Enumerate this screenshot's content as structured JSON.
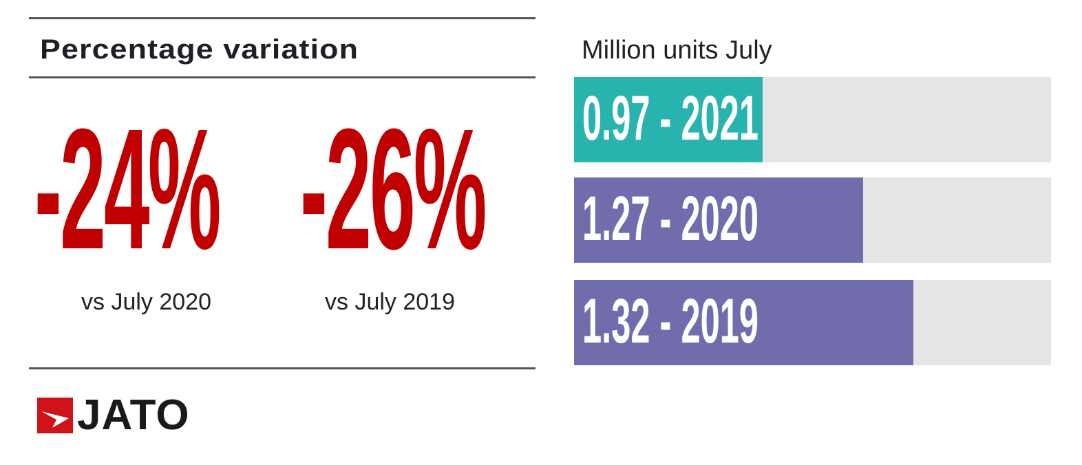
{
  "left": {
    "title": "Percentage variation",
    "stats": [
      {
        "value": "-24%",
        "caption": "vs July 2020"
      },
      {
        "value": "-26%",
        "caption": "vs July 2019"
      }
    ],
    "logo_text": "JATO"
  },
  "colors": {
    "red": "#c00000",
    "teal": "#29b3ae",
    "purple": "#716dad",
    "track": "#e6e4e5"
  },
  "chart_data": {
    "type": "bar",
    "title": "Million units July",
    "categories": [
      "2021",
      "2020",
      "2019"
    ],
    "values": [
      0.97,
      1.27,
      1.32
    ],
    "labels": [
      "0.97 - 2021",
      "1.27 - 2020",
      "1.32 - 2019"
    ],
    "fill_fraction": [
      0.395,
      0.606,
      0.711
    ],
    "bar_colors": [
      "#29b3ae",
      "#716dad",
      "#716dad"
    ]
  }
}
